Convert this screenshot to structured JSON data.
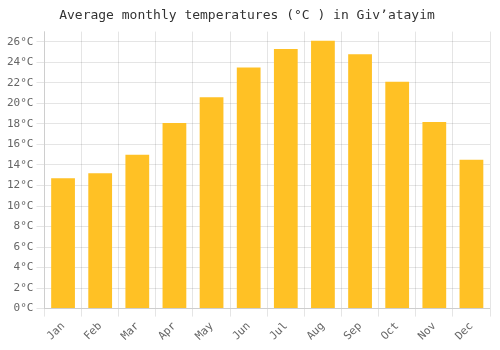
{
  "chart_data": {
    "type": "bar",
    "title": "Average monthly temperatures (°C ) in Givʼatayim",
    "categories": [
      "Jan",
      "Feb",
      "Mar",
      "Apr",
      "May",
      "Jun",
      "Jul",
      "Aug",
      "Sep",
      "Oct",
      "Nov",
      "Dec"
    ],
    "values": [
      12.7,
      13.2,
      15.0,
      18.1,
      20.6,
      23.5,
      25.3,
      26.1,
      24.8,
      22.1,
      18.2,
      14.5
    ],
    "color": "#FFC125",
    "ylim": [
      0,
      27
    ],
    "yticks": [
      {
        "value": 0,
        "label": "0°C"
      },
      {
        "value": 2,
        "label": "2°C"
      },
      {
        "value": 4,
        "label": "4°C"
      },
      {
        "value": 6,
        "label": "6°C"
      },
      {
        "value": 8,
        "label": "8°C"
      },
      {
        "value": 10,
        "label": "10°C"
      },
      {
        "value": 12,
        "label": "12°C"
      },
      {
        "value": 14,
        "label": "14°C"
      },
      {
        "value": 16,
        "label": "16°C"
      },
      {
        "value": 18,
        "label": "18°C"
      },
      {
        "value": 20,
        "label": "20°C"
      },
      {
        "value": 22,
        "label": "22°C"
      },
      {
        "value": 24,
        "label": "24°C"
      },
      {
        "value": 26,
        "label": "26°C"
      }
    ],
    "grid": true
  }
}
